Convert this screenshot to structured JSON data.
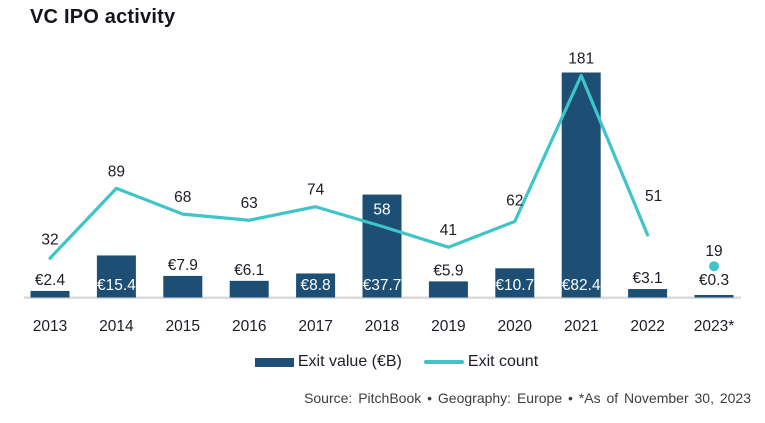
{
  "title": "VC IPO activity",
  "colors": {
    "bar": "#1d4e74",
    "line": "#3ec4c9",
    "baseline": "#d9d9d9",
    "text": "#1c1c26",
    "inside_label": "#ffffff"
  },
  "legend": {
    "items": [
      {
        "label": "Exit value (€B)",
        "swatch": "bar"
      },
      {
        "label": "Exit count",
        "swatch": "line"
      }
    ]
  },
  "footer": {
    "source": "Source: PitchBook • Geography: Europe • *As of November 30, 2023"
  },
  "chart_data": {
    "type": "bar",
    "subtype": "combo-bar-line",
    "title": "VC IPO activity",
    "xlabel": "",
    "ylabel": "",
    "grid": false,
    "value_axis_visible": false,
    "legend_position": "bottom-center",
    "categories": [
      "2013",
      "2014",
      "2015",
      "2016",
      "2017",
      "2018",
      "2019",
      "2020",
      "2021",
      "2022",
      "2023*"
    ],
    "series": [
      {
        "name": "Exit value (€B)",
        "type": "bar",
        "color": "#1d4e74",
        "values": [
          2.4,
          15.4,
          7.9,
          6.1,
          8.8,
          37.7,
          5.9,
          10.7,
          82.4,
          3.1,
          0.3
        ],
        "labels": [
          "€2.4",
          "€15.4",
          "€7.9",
          "€6.1",
          "€8.8",
          "€37.7",
          "€5.9",
          "€10.7",
          "€82.4",
          "€3.1",
          "€0.3"
        ],
        "label_inside": [
          false,
          true,
          false,
          false,
          true,
          true,
          false,
          true,
          true,
          false,
          false
        ]
      },
      {
        "name": "Exit count",
        "type": "line",
        "color": "#3ec4c9",
        "values": [
          32,
          89,
          68,
          63,
          74,
          58,
          41,
          62,
          181,
          51,
          19
        ],
        "labels": [
          "32",
          "89",
          "68",
          "63",
          "74",
          "58",
          "41",
          "62",
          "181",
          "51",
          "19"
        ],
        "label_inside": [
          false,
          false,
          false,
          false,
          false,
          true,
          false,
          false,
          false,
          false,
          false
        ],
        "isolated_last_point": true
      }
    ]
  }
}
